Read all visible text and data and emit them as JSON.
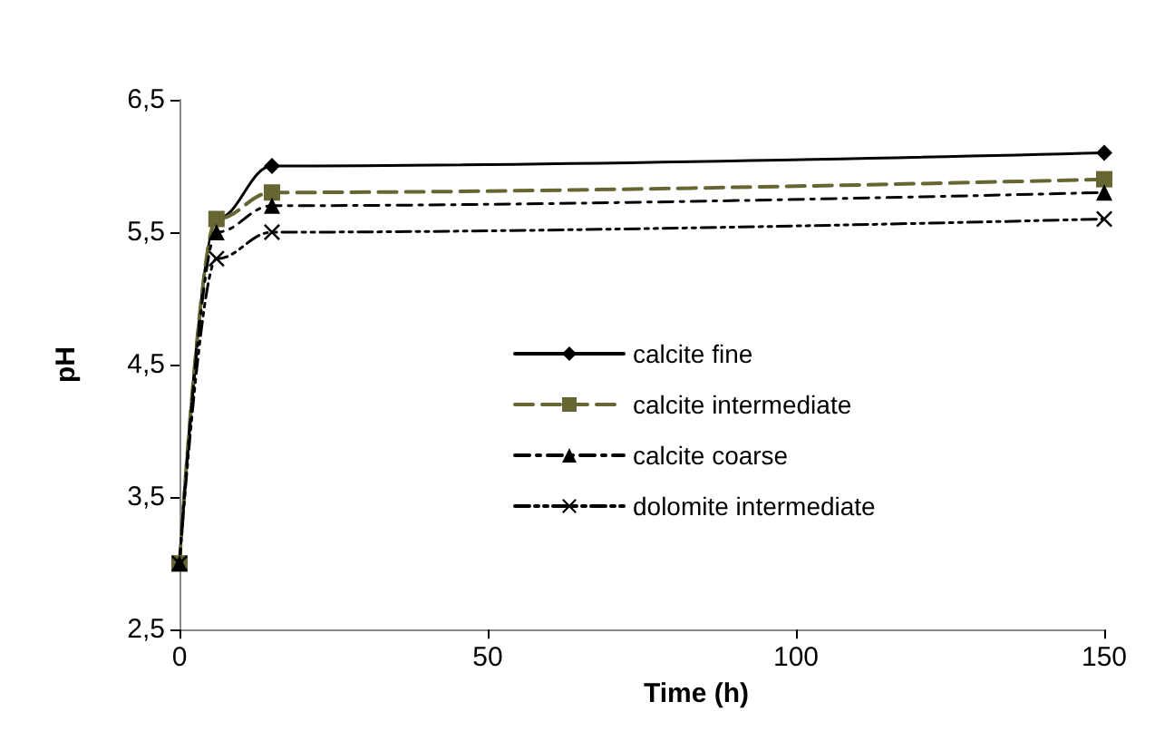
{
  "chart_data": {
    "type": "line",
    "xlabel": "Time (h)",
    "ylabel": "pH",
    "x": [
      0,
      6,
      15,
      150
    ],
    "series": [
      {
        "name": "calcite fine",
        "color": "#000000",
        "marker": "diamond",
        "line_style": "solid",
        "values": [
          3.0,
          5.6,
          6.0,
          6.1
        ]
      },
      {
        "name": "calcite intermediate",
        "color": "#666633",
        "marker": "square",
        "line_style": "dashed",
        "values": [
          3.0,
          5.6,
          5.8,
          5.9
        ]
      },
      {
        "name": "calcite coarse",
        "color": "#000000",
        "marker": "triangle",
        "line_style": "dashdot",
        "values": [
          3.0,
          5.5,
          5.7,
          5.8
        ]
      },
      {
        "name": "dolomite intermediate",
        "color": "#000000",
        "marker": "cross",
        "line_style": "dashdotdot",
        "values": [
          3.0,
          5.3,
          5.5,
          5.6
        ]
      }
    ],
    "xlim": [
      0,
      150
    ],
    "xticks": [
      0,
      50,
      100,
      150
    ],
    "ylim": [
      2.5,
      6.5
    ],
    "yticks": [
      {
        "value": 2.5,
        "label": "2,5"
      },
      {
        "value": 3.5,
        "label": "3,5"
      },
      {
        "value": 4.5,
        "label": "4,5"
      },
      {
        "value": 5.5,
        "label": "5,5"
      },
      {
        "value": 6.5,
        "label": "6,5"
      }
    ],
    "grid": false,
    "legend": "center right"
  }
}
